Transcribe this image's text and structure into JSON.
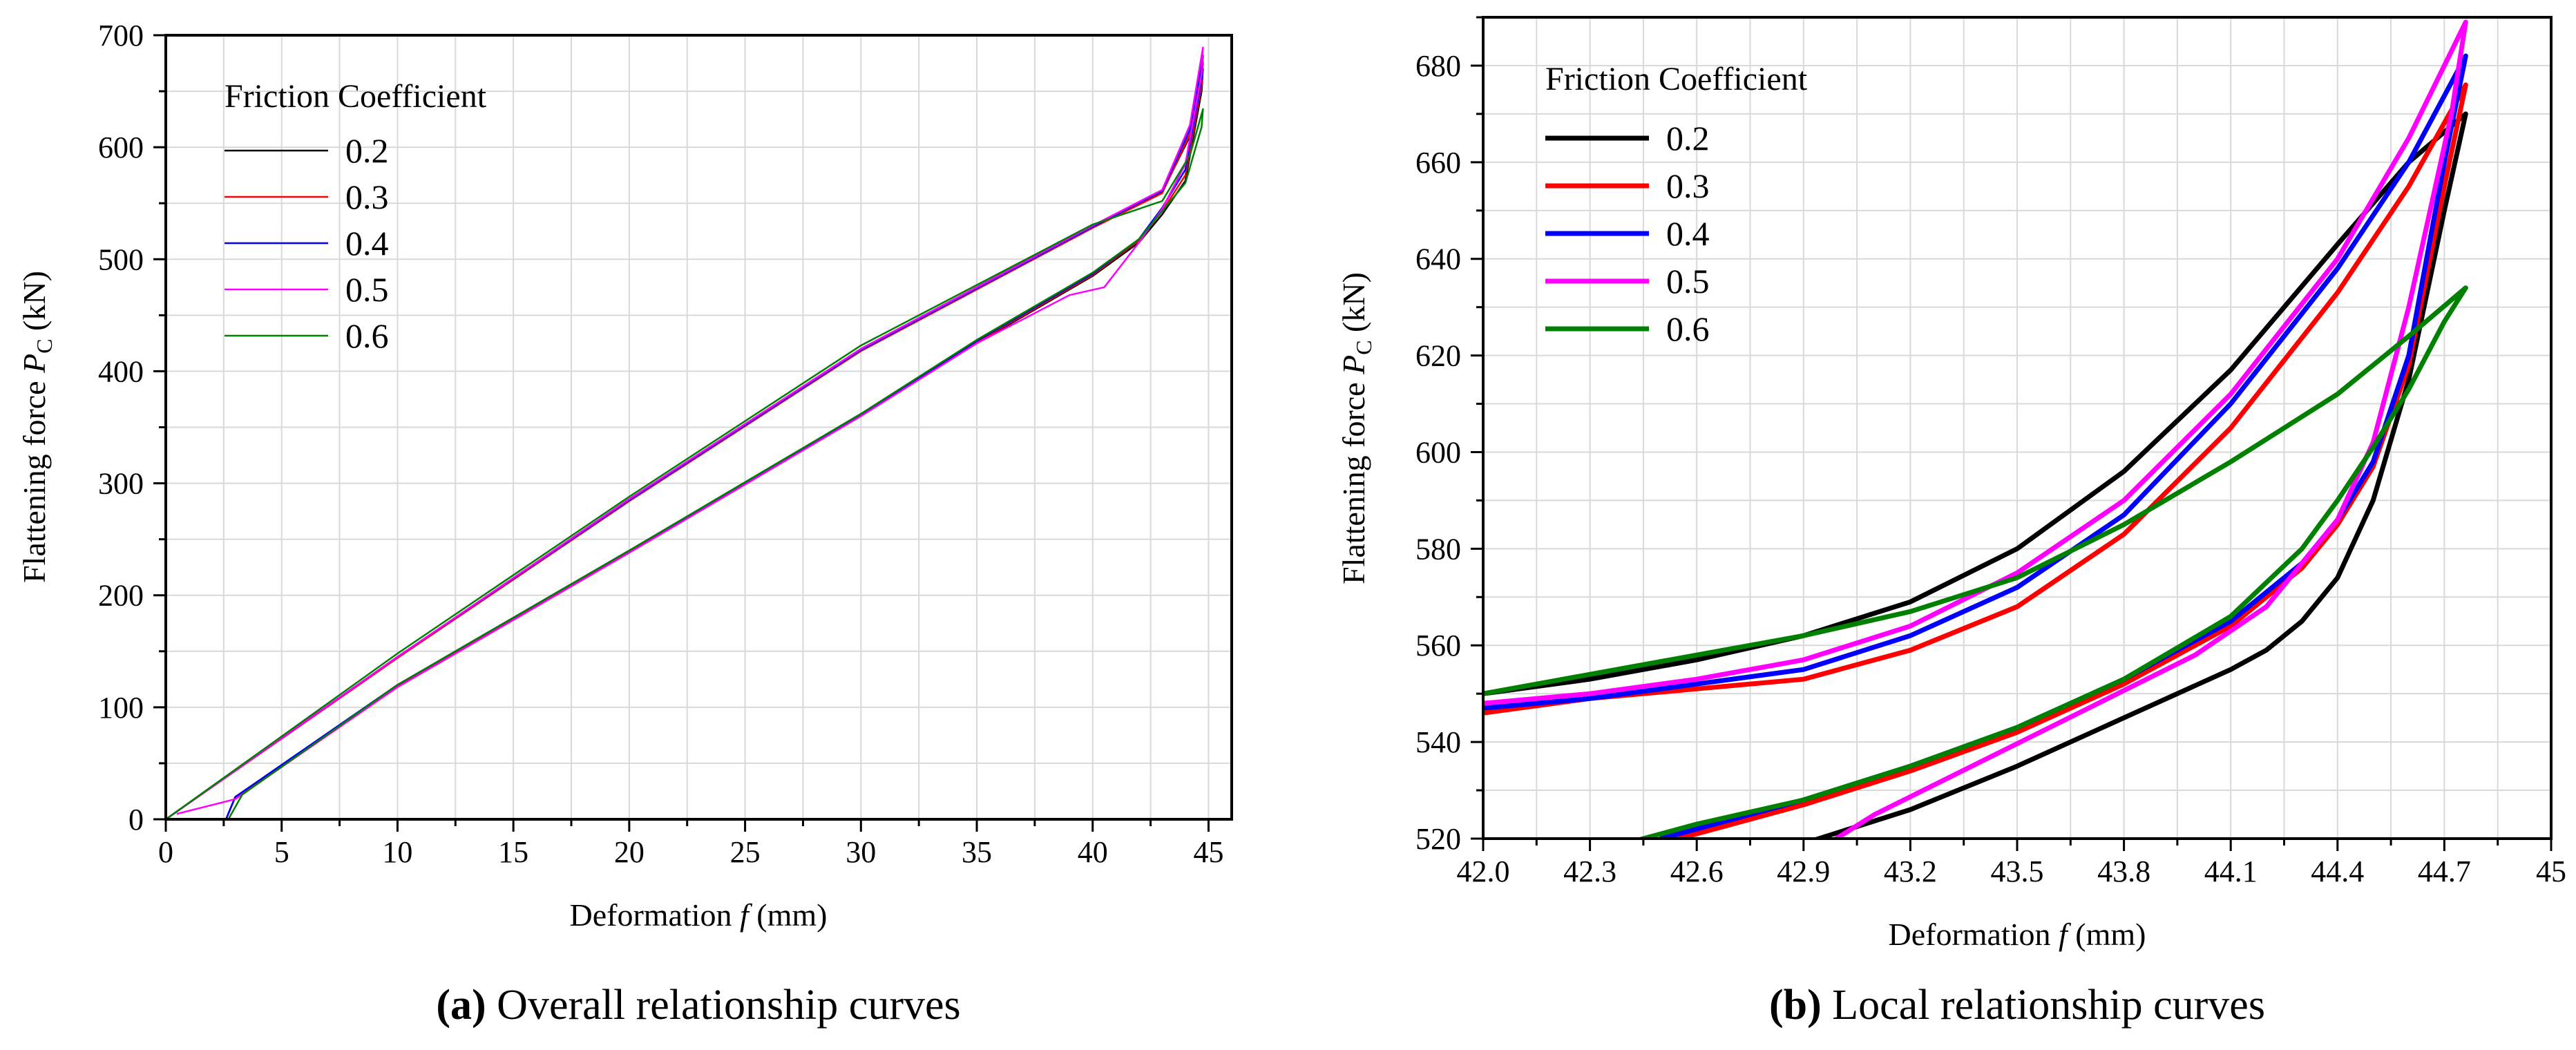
{
  "chart_data": [
    {
      "type": "line",
      "panel": "a",
      "caption_letter": "(a)",
      "caption_text": " Overall relationship curves",
      "xlabel": "Deformation ",
      "xlabel_var": "f",
      "xlabel_unit": " (mm)",
      "ylabel": "Flattening force ",
      "ylabel_var": "P",
      "ylabel_sub": "C",
      "ylabel_unit": " (kN)",
      "xlim": [
        0,
        46
      ],
      "ylim": [
        0,
        700
      ],
      "xticks": [
        0,
        5,
        10,
        15,
        20,
        25,
        30,
        35,
        40,
        45
      ],
      "yticks": [
        0,
        100,
        200,
        300,
        400,
        500,
        600,
        700
      ],
      "x_tick_labels": [
        "0",
        "5",
        "10",
        "15",
        "20",
        "25",
        "30",
        "35",
        "40",
        "45"
      ],
      "y_tick_labels": [
        "0",
        "100",
        "200",
        "300",
        "400",
        "500",
        "600",
        "700"
      ],
      "legend_title": "Friction Coefficient",
      "line_width": 2.5,
      "series": [
        {
          "name": "0.2",
          "color": "#000000",
          "x": [
            0,
            10,
            20,
            30,
            40,
            43,
            44.2,
            44.76,
            44.7,
            44,
            43,
            42,
            40,
            35,
            30,
            20,
            10,
            3,
            2.6
          ],
          "y": [
            0,
            145,
            285,
            420,
            530,
            560,
            610,
            670,
            650,
            570,
            540,
            515,
            485,
            425,
            360,
            238,
            118,
            20,
            0
          ]
        },
        {
          "name": "0.3",
          "color": "#ff0000",
          "x": [
            0,
            10,
            20,
            30,
            40,
            43,
            44.2,
            44.76,
            44.7,
            44,
            43,
            42,
            40,
            35,
            30,
            20,
            10,
            3,
            2.6
          ],
          "y": [
            0,
            144,
            284,
            418,
            528,
            559,
            612,
            676,
            655,
            575,
            543,
            517,
            486,
            426,
            361,
            239,
            119,
            20,
            0
          ]
        },
        {
          "name": "0.4",
          "color": "#0000ff",
          "x": [
            0,
            10,
            20,
            30,
            40,
            43,
            44.2,
            44.76,
            44.7,
            44,
            43,
            42,
            40,
            35,
            30,
            20,
            10,
            3,
            2.6
          ],
          "y": [
            0,
            145,
            285,
            419,
            529,
            561,
            616,
            682,
            660,
            580,
            546,
            518,
            487,
            427,
            361,
            240,
            120,
            20,
            0
          ]
        },
        {
          "name": "0.5",
          "color": "#ff00ff",
          "x": [
            0,
            10,
            20,
            30,
            40,
            43,
            44.2,
            44.76,
            44.7,
            44,
            43,
            42,
            40.5,
            39,
            35,
            30,
            20,
            10,
            3,
            0.5
          ],
          "y": [
            0,
            145,
            286,
            420,
            530,
            562,
            620,
            689,
            665,
            585,
            545,
            515,
            475,
            468,
            425,
            360,
            238,
            118,
            18,
            5
          ]
        },
        {
          "name": "0.6",
          "color": "#008000",
          "x": [
            0,
            10,
            20,
            30,
            40,
            43,
            44.2,
            44.76,
            44.7,
            44,
            43,
            42,
            40,
            35,
            30,
            20,
            10,
            3.3,
            2.7
          ],
          "y": [
            0,
            148,
            288,
            423,
            531,
            552,
            593,
            634,
            618,
            568,
            543,
            518,
            488,
            428,
            362,
            240,
            120,
            22,
            0
          ]
        }
      ]
    },
    {
      "type": "line",
      "panel": "b",
      "caption_letter": "(b)",
      "caption_text": " Local relationship curves",
      "xlabel": "Deformation ",
      "xlabel_var": "f",
      "xlabel_unit": " (mm)",
      "ylabel": "Flattening force ",
      "ylabel_var": "P",
      "ylabel_sub": "C",
      "ylabel_unit": " (kN)",
      "xlim": [
        42.0,
        45.0
      ],
      "ylim": [
        520,
        690
      ],
      "xticks": [
        42.0,
        42.3,
        42.6,
        42.9,
        43.2,
        43.5,
        43.8,
        44.1,
        44.4,
        44.7,
        45.0
      ],
      "yticks": [
        520,
        540,
        560,
        580,
        600,
        620,
        640,
        660,
        680
      ],
      "x_tick_labels": [
        "42.0",
        "42.3",
        "42.6",
        "42.9",
        "43.2",
        "43.5",
        "43.8",
        "44.1",
        "44.4",
        "44.7",
        "45"
      ],
      "y_tick_labels": [
        "520",
        "540",
        "560",
        "580",
        "600",
        "620",
        "640",
        "660",
        "680"
      ],
      "legend_title": "Friction Coefficient",
      "line_width": 7,
      "series": [
        {
          "name": "0.2",
          "color": "#000000",
          "x": [
            42.0,
            42.3,
            42.6,
            42.9,
            43.2,
            43.5,
            43.8,
            44.1,
            44.4,
            44.6,
            44.76,
            44.7,
            44.6,
            44.5,
            44.4,
            44.3,
            44.2,
            44.1,
            43.8,
            43.5,
            43.2,
            42.9,
            42.86
          ],
          "y": [
            550,
            553,
            557,
            562,
            569,
            580,
            596,
            617,
            643,
            660,
            670,
            650,
            615,
            590,
            574,
            565,
            559,
            555,
            545,
            535,
            526,
            519,
            518
          ]
        },
        {
          "name": "0.3",
          "color": "#ff0000",
          "x": [
            42.0,
            42.3,
            42.6,
            42.9,
            43.2,
            43.5,
            43.8,
            44.1,
            44.4,
            44.6,
            44.76,
            44.7,
            44.6,
            44.5,
            44.4,
            44.3,
            44.1,
            43.8,
            43.5,
            43.2,
            42.9,
            42.6,
            42.5
          ],
          "y": [
            546,
            549,
            551,
            553,
            559,
            568,
            583,
            605,
            633,
            655,
            676,
            655,
            618,
            597,
            585,
            576,
            564,
            552,
            542,
            534,
            527,
            521,
            519
          ]
        },
        {
          "name": "0.4",
          "color": "#0000ff",
          "x": [
            42.0,
            42.3,
            42.6,
            42.9,
            43.2,
            43.5,
            43.8,
            44.1,
            44.4,
            44.6,
            44.76,
            44.7,
            44.6,
            44.5,
            44.4,
            44.3,
            44.1,
            43.8,
            43.5,
            43.2,
            42.9,
            42.6,
            42.5
          ],
          "y": [
            547,
            549,
            552,
            555,
            562,
            572,
            587,
            610,
            638,
            660,
            682,
            660,
            620,
            598,
            586,
            577,
            565,
            553,
            543,
            535,
            528,
            522,
            520
          ]
        },
        {
          "name": "0.5",
          "color": "#ff00ff",
          "x": [
            42.0,
            42.3,
            42.6,
            42.9,
            43.2,
            43.5,
            43.8,
            44.1,
            44.4,
            44.6,
            44.76,
            44.72,
            44.6,
            44.5,
            44.4,
            44.2,
            44.0,
            43.7,
            43.4,
            43.1,
            42.97
          ],
          "y": [
            548,
            550,
            553,
            557,
            564,
            575,
            590,
            612,
            640,
            665,
            689,
            670,
            630,
            602,
            586,
            568,
            558,
            547,
            536,
            525,
            519
          ]
        },
        {
          "name": "0.6",
          "color": "#008000",
          "x": [
            42.0,
            42.3,
            42.6,
            42.9,
            43.2,
            43.5,
            43.8,
            44.1,
            44.4,
            44.6,
            44.76,
            44.7,
            44.6,
            44.5,
            44.4,
            44.3,
            44.1,
            43.8,
            43.5,
            43.2,
            42.9,
            42.6,
            42.4
          ],
          "y": [
            550,
            554,
            558,
            562,
            567,
            574,
            585,
            598,
            612,
            624,
            634,
            627,
            613,
            601,
            590,
            580,
            566,
            553,
            543,
            535,
            528,
            523,
            519
          ]
        }
      ]
    }
  ]
}
